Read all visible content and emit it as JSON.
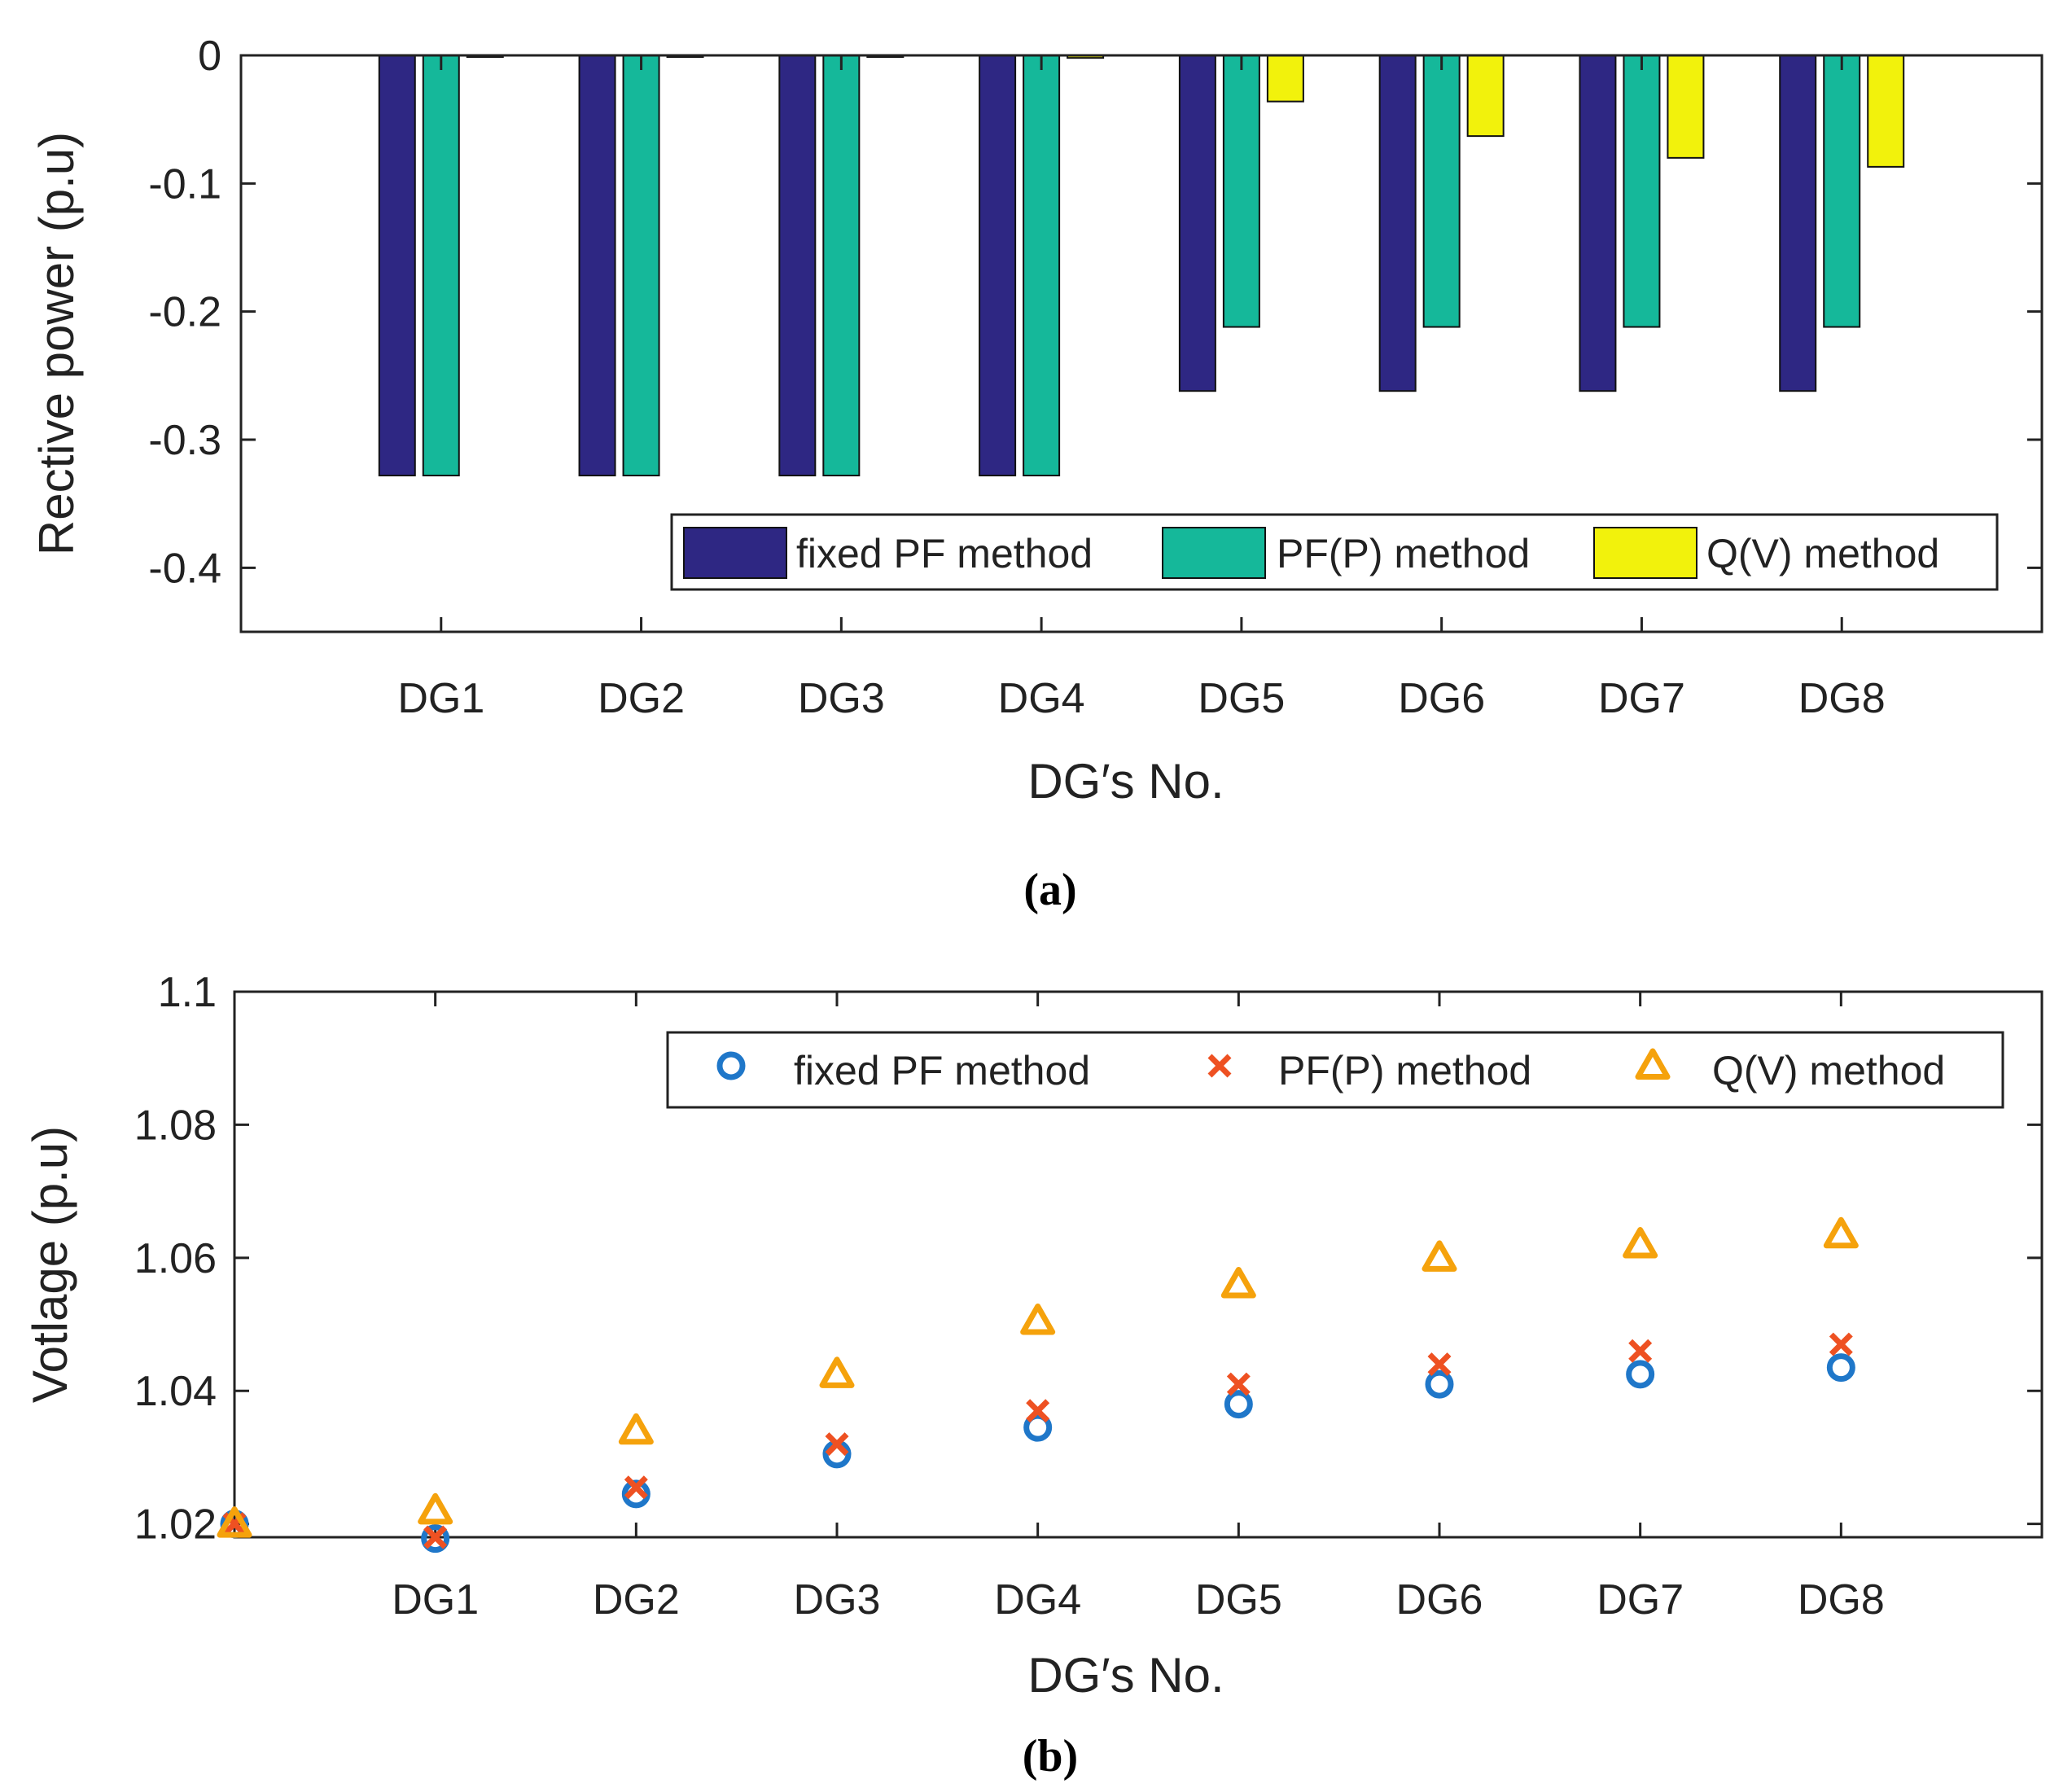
{
  "chart_data": [
    {
      "panel": "(a)",
      "type": "bar",
      "title": "",
      "xlabel": "DG′s No.",
      "ylabel": "Rective power (p.u)",
      "categories": [
        "DG1",
        "DG2",
        "DG3",
        "DG4",
        "DG5",
        "DG6",
        "DG7",
        "DG8"
      ],
      "ylim": [
        -0.45,
        0
      ],
      "yticks": [
        0,
        -0.1,
        -0.2,
        -0.3,
        -0.4
      ],
      "ytick_labels": [
        "0",
        "-0.1",
        "-0.2",
        "-0.3",
        "-0.4"
      ],
      "series": [
        {
          "name": "fixed PF method",
          "color": "#2e2783",
          "values": [
            -0.328,
            -0.328,
            -0.328,
            -0.328,
            -0.262,
            -0.262,
            -0.262,
            -0.262
          ]
        },
        {
          "name": "PF(P) method",
          "color": "#15b89a",
          "values": [
            -0.328,
            -0.328,
            -0.328,
            -0.328,
            -0.212,
            -0.212,
            -0.212,
            -0.212
          ]
        },
        {
          "name": "Q(V) method",
          "color": "#f2f20c",
          "values": [
            0,
            0,
            0,
            -0.002,
            -0.036,
            -0.063,
            -0.08,
            -0.087
          ]
        }
      ],
      "legend_position": "bottom-right"
    },
    {
      "panel": "(b)",
      "type": "scatter",
      "title": "",
      "xlabel": "DG′s No.",
      "ylabel": "Votlage (p.u)",
      "x_positions": [
        0,
        1,
        2,
        3,
        4,
        5,
        6,
        7,
        8
      ],
      "xtick_labels": [
        "DG1",
        "DG2",
        "DG3",
        "DG4",
        "DG5",
        "DG6",
        "DG7",
        "DG8"
      ],
      "xlim": [
        0,
        9
      ],
      "ylim": [
        1.018,
        1.1
      ],
      "yticks": [
        1.02,
        1.04,
        1.06,
        1.08,
        1.1
      ],
      "ytick_labels": [
        "1.02",
        "1.04",
        "1.06",
        "1.08",
        "1.1"
      ],
      "series": [
        {
          "name": "fixed PF method",
          "marker": "circle",
          "color": "#1f77c9",
          "values": [
            1.02,
            1.0178,
            1.0245,
            1.0305,
            1.0345,
            1.038,
            1.041,
            1.0425,
            1.0435
          ]
        },
        {
          "name": "PF(P) method",
          "marker": "x",
          "color": "#ee5122",
          "values": [
            1.02,
            1.018,
            1.0255,
            1.032,
            1.037,
            1.041,
            1.044,
            1.046,
            1.047
          ]
        },
        {
          "name": "Q(V) method",
          "marker": "triangle",
          "color": "#f5a20c",
          "values": [
            1.02,
            1.022,
            1.034,
            1.0425,
            1.0505,
            1.056,
            1.06,
            1.062,
            1.0635
          ]
        }
      ],
      "legend_position": "top-right"
    }
  ]
}
